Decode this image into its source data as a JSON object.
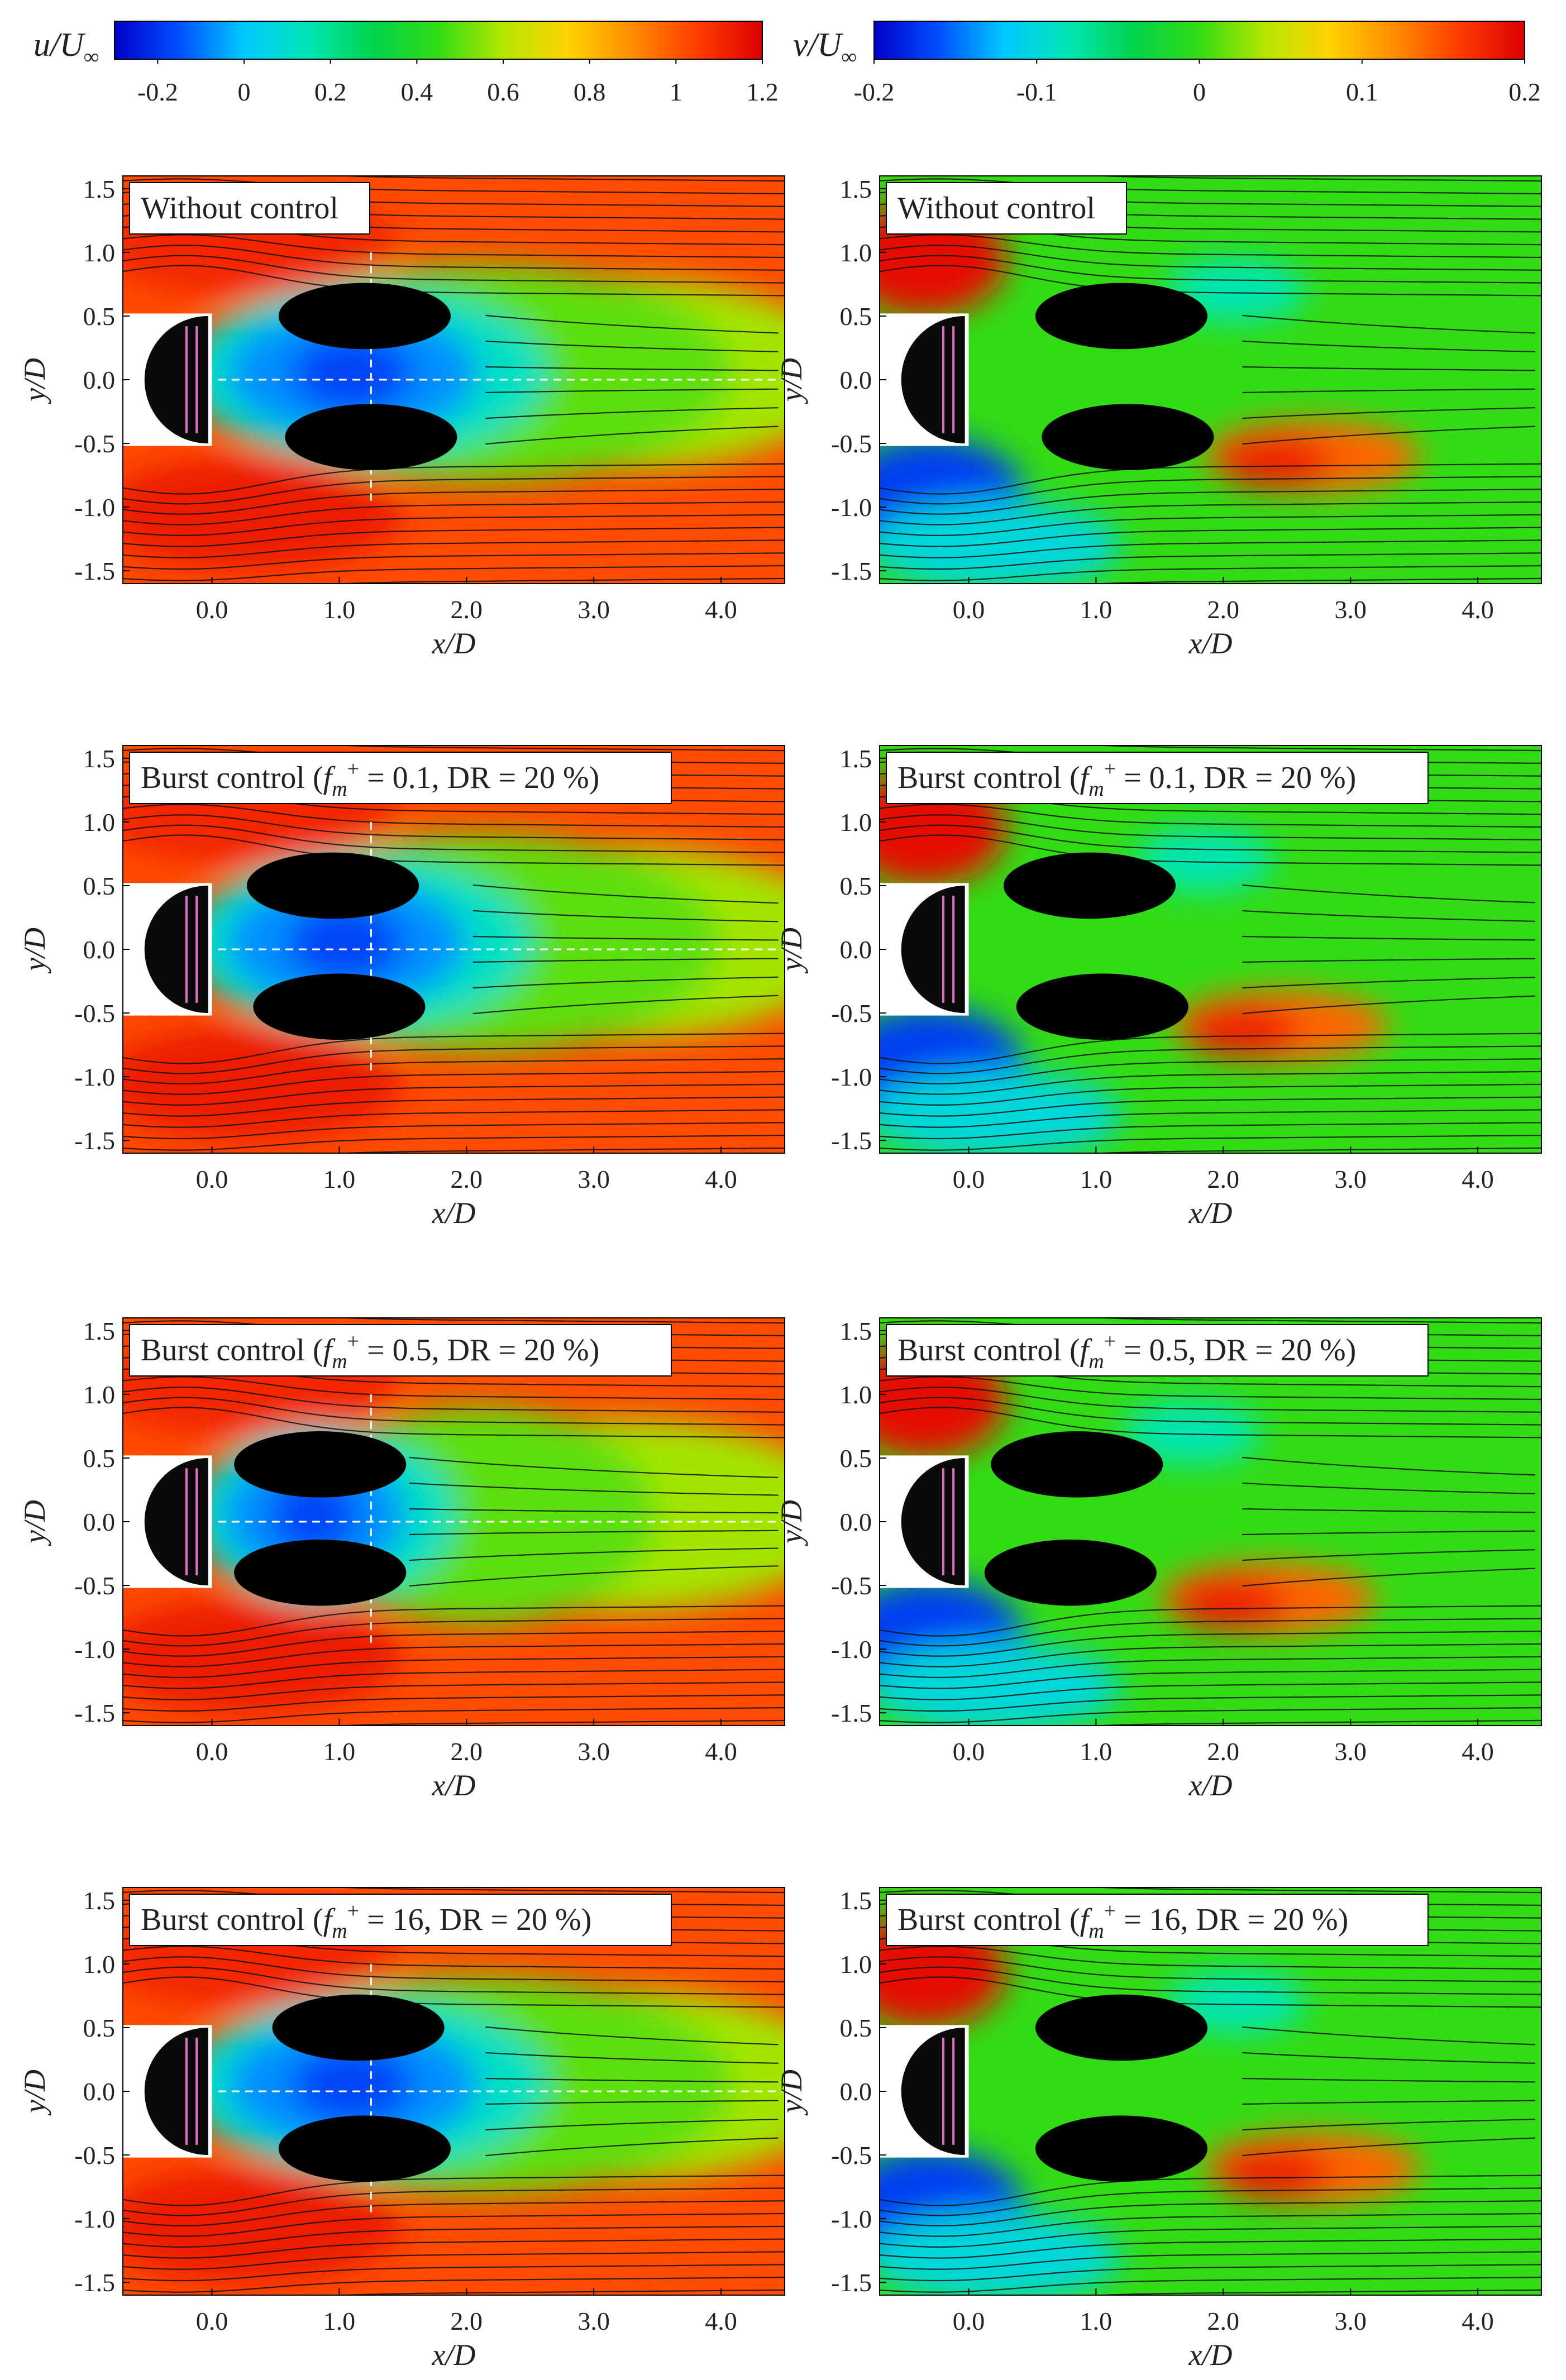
{
  "figure": {
    "colorbars": [
      {
        "key": "u",
        "label": "u/U∞",
        "ticks": [
          "-0.2",
          "0",
          "0.2",
          "0.4",
          "0.6",
          "0.8",
          "1",
          "1.2"
        ],
        "tick_values": [
          -0.2,
          0,
          0.2,
          0.4,
          0.6,
          0.8,
          1.0,
          1.2
        ],
        "range": [
          -0.3,
          1.2
        ]
      },
      {
        "key": "v",
        "label": "v/U∞",
        "ticks": [
          "-0.2",
          "-0.1",
          "0",
          "0.1",
          "0.2"
        ],
        "tick_values": [
          -0.2,
          -0.1,
          0,
          0.1,
          0.2
        ],
        "range": [
          -0.2,
          0.2
        ]
      }
    ],
    "colormap": [
      "#0000c8",
      "#0050ff",
      "#00c8ff",
      "#00e6b4",
      "#00d24b",
      "#32dc14",
      "#b4e600",
      "#ffd200",
      "#ff8c00",
      "#ff3c00",
      "#dc0000"
    ]
  },
  "chart_data": [
    {
      "type": "heatmap",
      "row": 1,
      "field": "u",
      "label": "Without control",
      "xlabel": "x/D",
      "ylabel": "y/D",
      "xlim": [
        -0.7,
        4.5
      ],
      "ylim": [
        -1.6,
        1.6
      ],
      "xticks": [
        "0.0",
        "1.0",
        "2.0",
        "3.0",
        "4.0"
      ],
      "yticks": [
        "-1.5",
        "-1.0",
        "-0.5",
        "0.0",
        "0.5",
        "1.0",
        "1.5"
      ],
      "recirculation_length_xD": 2.2,
      "vortex_centers": [
        [
          1.2,
          0.5
        ],
        [
          1.25,
          -0.45
        ]
      ],
      "dashed_lines": {
        "x": 1.25,
        "y": 0.0
      }
    },
    {
      "type": "heatmap",
      "row": 1,
      "field": "v",
      "label": "Without control",
      "xlabel": "x/D",
      "ylabel": "y/D",
      "xlim": [
        -0.7,
        4.5
      ],
      "ylim": [
        -1.6,
        1.6
      ],
      "xticks": [
        "0.0",
        "1.0",
        "2.0",
        "3.0",
        "4.0"
      ],
      "yticks": [
        "-1.5",
        "-1.0",
        "-0.5",
        "0.0",
        "0.5",
        "1.0",
        "1.5"
      ],
      "vortex_centers": [
        [
          1.2,
          0.5
        ],
        [
          1.25,
          -0.45
        ]
      ]
    },
    {
      "type": "heatmap",
      "row": 2,
      "field": "u",
      "label": "Burst control (fm+ = 0.1, DR = 20 %)",
      "label_parts": [
        "Burst control (",
        "f",
        "m",
        "+",
        " = 0.1, DR = 20 %)"
      ],
      "xlabel": "x/D",
      "ylabel": "y/D",
      "xlim": [
        -0.7,
        4.5
      ],
      "ylim": [
        -1.6,
        1.6
      ],
      "xticks": [
        "0.0",
        "1.0",
        "2.0",
        "3.0",
        "4.0"
      ],
      "yticks": [
        "-1.5",
        "-1.0",
        "-0.5",
        "0.0",
        "0.5",
        "1.0",
        "1.5"
      ],
      "recirculation_length_xD": 2.1,
      "vortex_centers": [
        [
          0.95,
          0.5
        ],
        [
          1.0,
          -0.45
        ]
      ],
      "dashed_lines": {
        "x": 1.25,
        "y": 0.0
      }
    },
    {
      "type": "heatmap",
      "row": 2,
      "field": "v",
      "label": "Burst control (fm+ = 0.1, DR = 20 %)",
      "label_parts": [
        "Burst control (",
        "f",
        "m",
        "+",
        " = 0.1, DR = 20 %)"
      ],
      "xlabel": "x/D",
      "ylabel": "y/D",
      "xlim": [
        -0.7,
        4.5
      ],
      "ylim": [
        -1.6,
        1.6
      ],
      "xticks": [
        "0.0",
        "1.0",
        "2.0",
        "3.0",
        "4.0"
      ],
      "yticks": [
        "-1.5",
        "-1.0",
        "-0.5",
        "0.0",
        "0.5",
        "1.0",
        "1.5"
      ],
      "vortex_centers": [
        [
          0.95,
          0.5
        ],
        [
          1.05,
          -0.45
        ]
      ]
    },
    {
      "type": "heatmap",
      "row": 3,
      "field": "u",
      "label": "Burst control (fm+ = 0.5, DR = 20 %)",
      "label_parts": [
        "Burst control (",
        "f",
        "m",
        "+",
        " = 0.5, DR = 20 %)"
      ],
      "xlabel": "x/D",
      "ylabel": "y/D",
      "xlim": [
        -0.7,
        4.5
      ],
      "ylim": [
        -1.6,
        1.6
      ],
      "xticks": [
        "0.0",
        "1.0",
        "2.0",
        "3.0",
        "4.0"
      ],
      "yticks": [
        "-1.5",
        "-1.0",
        "-0.5",
        "0.0",
        "0.5",
        "1.0",
        "1.5"
      ],
      "recirculation_length_xD": 1.6,
      "vortex_centers": [
        [
          0.85,
          0.45
        ],
        [
          0.85,
          -0.4
        ]
      ],
      "dashed_lines": {
        "x": 1.25,
        "y": 0.0
      }
    },
    {
      "type": "heatmap",
      "row": 3,
      "field": "v",
      "label": "Burst control (fm+ = 0.5, DR = 20 %)",
      "label_parts": [
        "Burst control (",
        "f",
        "m",
        "+",
        " = 0.5, DR = 20 %)"
      ],
      "xlabel": "x/D",
      "ylabel": "y/D",
      "xlim": [
        -0.7,
        4.5
      ],
      "ylim": [
        -1.6,
        1.6
      ],
      "xticks": [
        "0.0",
        "1.0",
        "2.0",
        "3.0",
        "4.0"
      ],
      "yticks": [
        "-1.5",
        "-1.0",
        "-0.5",
        "0.0",
        "0.5",
        "1.0",
        "1.5"
      ],
      "vortex_centers": [
        [
          0.85,
          0.45
        ],
        [
          0.8,
          -0.4
        ]
      ]
    },
    {
      "type": "heatmap",
      "row": 4,
      "field": "u",
      "label": "Burst control (fm+ = 16, DR = 20 %)",
      "label_parts": [
        "Burst control (",
        "f",
        "m",
        "+",
        " = 16, DR = 20 %)"
      ],
      "xlabel": "x/D",
      "ylabel": "y/D",
      "xlim": [
        -0.7,
        4.5
      ],
      "ylim": [
        -1.6,
        1.6
      ],
      "xticks": [
        "0.0",
        "1.0",
        "2.0",
        "3.0",
        "4.0"
      ],
      "yticks": [
        "-1.5",
        "-1.0",
        "-0.5",
        "0.0",
        "0.5",
        "1.0",
        "1.5"
      ],
      "recirculation_length_xD": 2.2,
      "vortex_centers": [
        [
          1.15,
          0.5
        ],
        [
          1.2,
          -0.45
        ]
      ],
      "dashed_lines": {
        "x": 1.25,
        "y": 0.0
      }
    },
    {
      "type": "heatmap",
      "row": 4,
      "field": "v",
      "label": "Burst control (fm+ = 16, DR = 20 %)",
      "label_parts": [
        "Burst control (",
        "f",
        "m",
        "+",
        " = 16, DR = 20 %)"
      ],
      "xlabel": "x/D",
      "ylabel": "y/D",
      "xlim": [
        -0.7,
        4.5
      ],
      "ylim": [
        -1.6,
        1.6
      ],
      "xticks": [
        "0.0",
        "1.0",
        "2.0",
        "3.0",
        "4.0"
      ],
      "yticks": [
        "-1.5",
        "-1.0",
        "-0.5",
        "0.0",
        "0.5",
        "1.0",
        "1.5"
      ],
      "vortex_centers": [
        [
          1.2,
          0.5
        ],
        [
          1.2,
          -0.45
        ]
      ]
    }
  ]
}
